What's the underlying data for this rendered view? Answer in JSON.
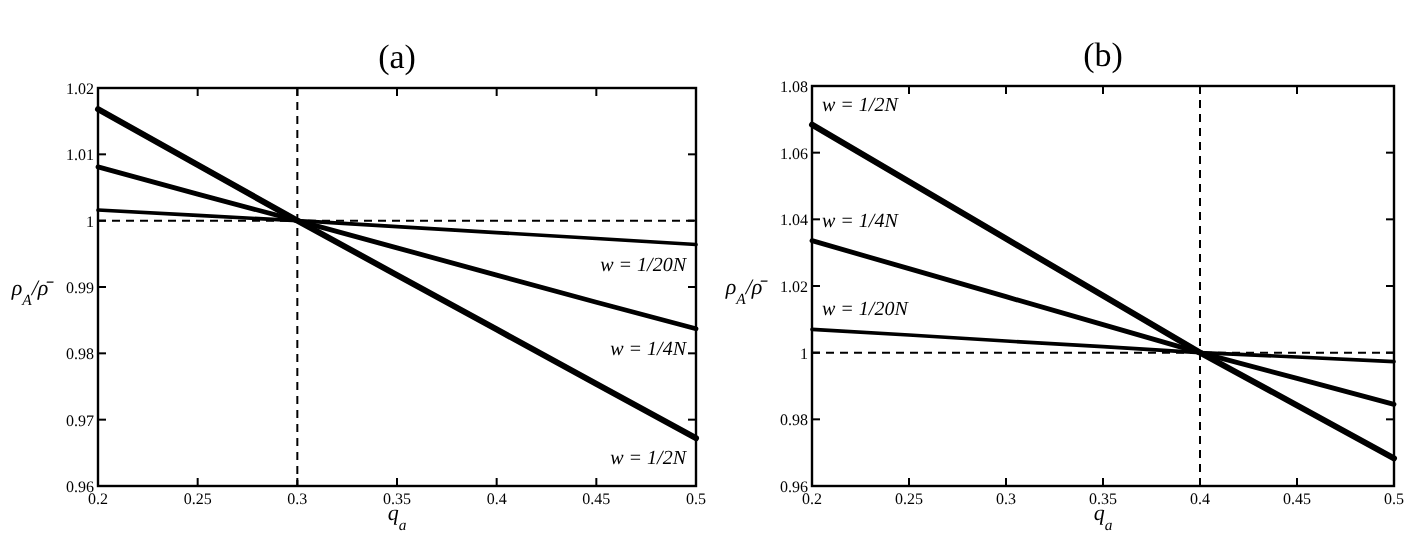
{
  "chart_data": [
    {
      "type": "line",
      "title": "(a)",
      "xlabel": "q$_{a}$",
      "ylabel": "ρ$_{A}$/ρ̄",
      "x": [
        0.2,
        0.25,
        0.3,
        0.35,
        0.4,
        0.45,
        0.5
      ],
      "series": [
        {
          "name": "w = 1/2N",
          "color": "#000000",
          "values": [
            1.0168,
            1.0084,
            1.0,
            0.9918,
            0.9836,
            0.9754,
            0.9672
          ]
        },
        {
          "name": "w = 1/4N",
          "color": "#000000",
          "values": [
            1.0081,
            1.004,
            1.0,
            0.9959,
            0.9918,
            0.9877,
            0.9837
          ]
        },
        {
          "name": "w = 1/20N",
          "color": "#000000",
          "values": [
            1.0016,
            1.0008,
            1.0,
            0.9991,
            0.9982,
            0.9973,
            0.9964
          ]
        }
      ],
      "xlim": [
        0.2,
        0.5
      ],
      "ylim": [
        0.96,
        1.02
      ],
      "xticks": [
        0.2,
        0.25,
        0.3,
        0.35,
        0.4,
        0.45,
        0.5
      ],
      "yticks": [
        0.96,
        0.97,
        0.98,
        0.99,
        1,
        1.01,
        1.02
      ],
      "ref_lines": [
        {
          "axis": "y",
          "value": 1,
          "line_style": "dashed",
          "color": "#000000"
        },
        {
          "axis": "x",
          "value": 0.3,
          "line_style": "dashed",
          "color": "#000000"
        }
      ],
      "grid": false,
      "marker": "none",
      "line_style": "solid",
      "legend": "right"
    },
    {
      "type": "line",
      "title": "(b)",
      "xlabel": "q$_{a}$",
      "ylabel": "ρ$_{A}$/ρ̄",
      "x": [
        0.2,
        0.25,
        0.3,
        0.35,
        0.4,
        0.45,
        0.5
      ],
      "series": [
        {
          "name": "w = 1/2N",
          "color": "#000000",
          "values": [
            1.0684,
            1.0513,
            1.0342,
            1.0171,
            1.0,
            0.9842,
            0.9683
          ]
        },
        {
          "name": "w = 1/4N",
          "color": "#000000",
          "values": [
            1.0336,
            1.0252,
            1.0168,
            1.0084,
            1.0,
            0.9923,
            0.9845
          ]
        },
        {
          "name": "w = 1/20N",
          "color": "#000000",
          "values": [
            1.007,
            1.0053,
            1.0035,
            1.0018,
            1.0,
            0.9987,
            0.9973
          ]
        }
      ],
      "xlim": [
        0.2,
        0.5
      ],
      "ylim": [
        0.96,
        1.08
      ],
      "xticks": [
        0.2,
        0.25,
        0.3,
        0.35,
        0.4,
        0.45,
        0.5
      ],
      "yticks": [
        0.96,
        0.98,
        1,
        1.02,
        1.04,
        1.06,
        1.08
      ],
      "ref_lines": [
        {
          "axis": "y",
          "value": 1,
          "line_style": "dashed",
          "color": "#000000"
        },
        {
          "axis": "x",
          "value": 0.4,
          "line_style": "dashed",
          "color": "#000000"
        }
      ],
      "grid": false,
      "marker": "none",
      "line_style": "solid",
      "legend": "top left"
    }
  ]
}
